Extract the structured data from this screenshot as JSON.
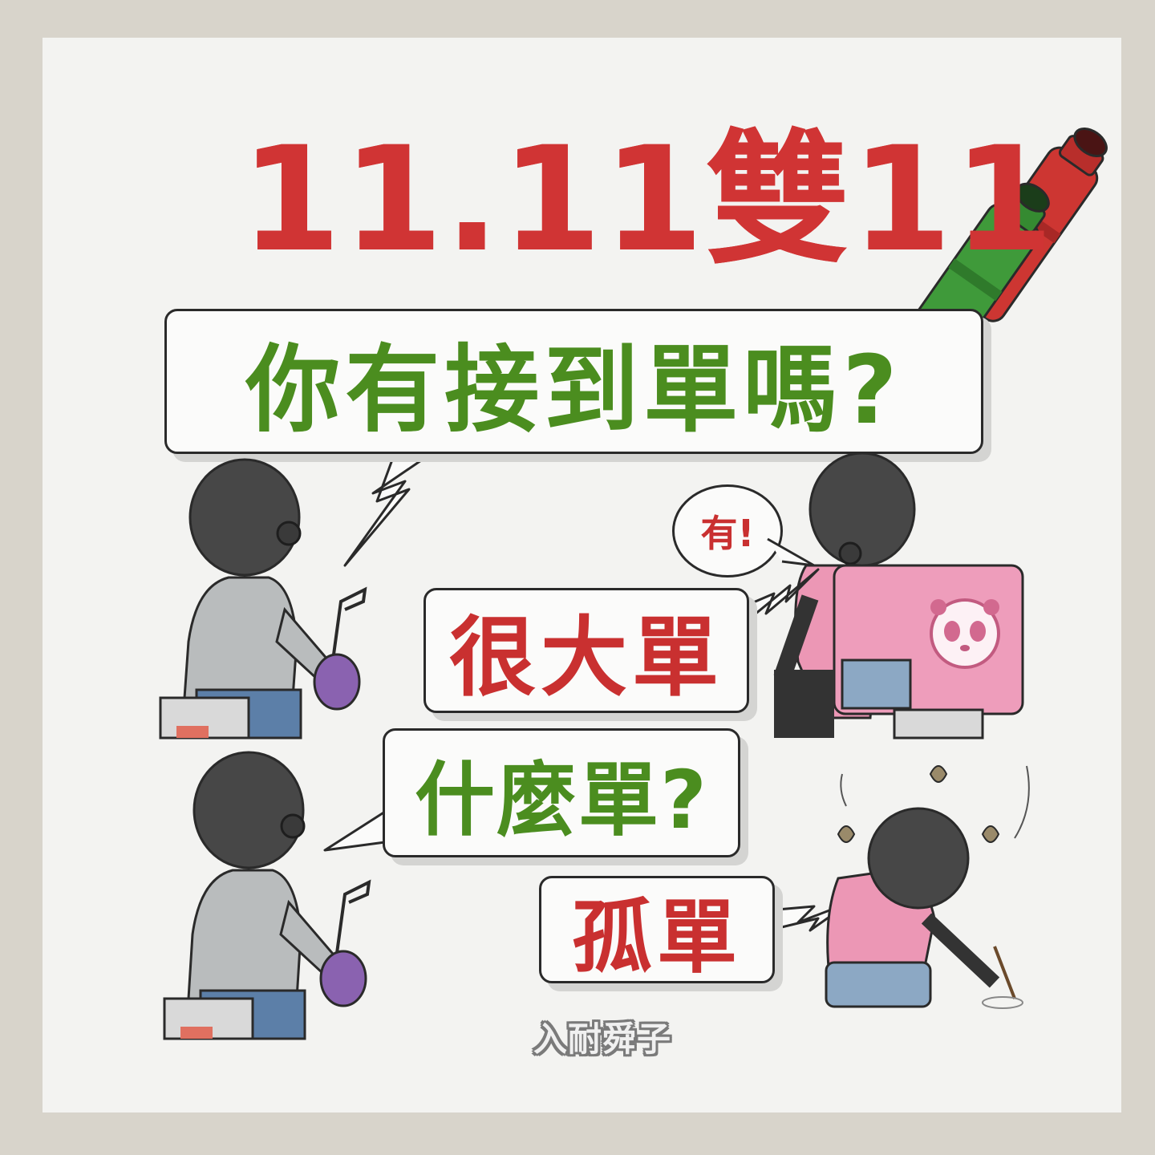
{
  "title": "11.11雙11",
  "bubbles": {
    "question": "你有接到單嗎?",
    "yes": "有!",
    "big_order": "很大單",
    "what_order": "什麼單?",
    "lonely_order": "孤單"
  },
  "signature": "入耐舜子",
  "colors": {
    "title_red": "#d03434",
    "text_green": "#4b8d1f",
    "paper": "#f3f3f1",
    "border": "#d8d4cb"
  },
  "icons": [
    "red-marker-icon",
    "green-marker-icon",
    "panda-logo-icon",
    "falling-leaf-icon"
  ]
}
